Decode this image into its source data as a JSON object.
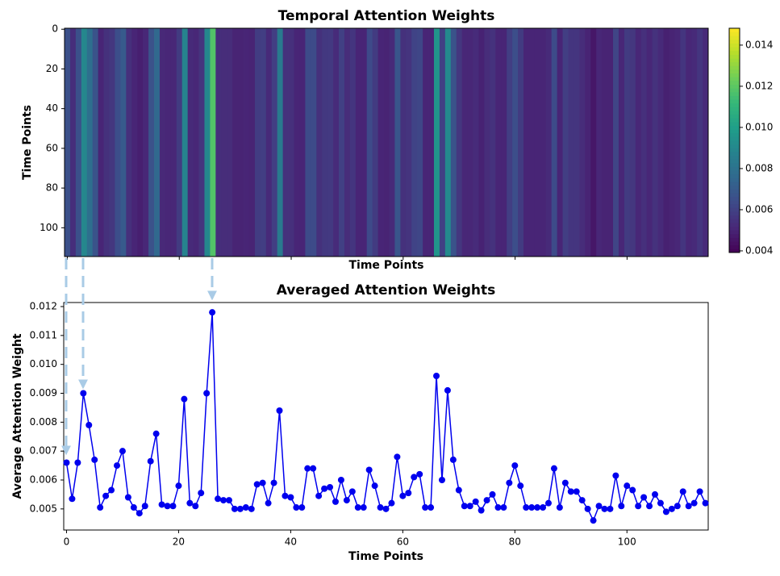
{
  "chart_data": [
    {
      "type": "heatmap",
      "title": "Temporal Attention Weights",
      "x_label": "Time Points",
      "y_label": "Time Points",
      "values": [
        0.0066,
        0.00535,
        0.0066,
        0.009,
        0.0079,
        0.0067,
        0.00505,
        0.00545,
        0.00565,
        0.0065,
        0.007,
        0.0054,
        0.00505,
        0.00485,
        0.0051,
        0.00665,
        0.0076,
        0.00515,
        0.0051,
        0.0051,
        0.0058,
        0.0088,
        0.0052,
        0.0051,
        0.00555,
        0.009,
        0.0118,
        0.00535,
        0.0053,
        0.0053,
        0.005,
        0.005,
        0.00505,
        0.005,
        0.00585,
        0.0059,
        0.0052,
        0.0059,
        0.0084,
        0.00545,
        0.0054,
        0.00505,
        0.00505,
        0.0064,
        0.0064,
        0.00545,
        0.0057,
        0.00575,
        0.00525,
        0.006,
        0.0053,
        0.0056,
        0.00505,
        0.00505,
        0.00635,
        0.0058,
        0.00505,
        0.005,
        0.0052,
        0.0068,
        0.00545,
        0.00555,
        0.0061,
        0.0062,
        0.00505,
        0.00505,
        0.0096,
        0.006,
        0.0091,
        0.0067,
        0.00565,
        0.0051,
        0.0051,
        0.00525,
        0.00495,
        0.0053,
        0.0055,
        0.00505,
        0.00505,
        0.0059,
        0.0065,
        0.0058,
        0.00505,
        0.00505,
        0.00505,
        0.00505,
        0.0052,
        0.0064,
        0.00505,
        0.0059,
        0.0056,
        0.0056,
        0.0053,
        0.005,
        0.0046,
        0.0051,
        0.005,
        0.005,
        0.00615,
        0.0051,
        0.0058,
        0.00565,
        0.0051,
        0.0054,
        0.0051,
        0.0055,
        0.0052,
        0.0049,
        0.005,
        0.0051,
        0.0056,
        0.0051,
        0.0052,
        0.0056,
        0.0052
      ],
      "xlim": [
        -0.5,
        114.5
      ],
      "xticks": [
        0,
        20,
        40,
        60,
        80,
        100
      ],
      "ylim": [
        114.5,
        -0.5
      ],
      "yticks": [
        0,
        20,
        40,
        60,
        80,
        100
      ],
      "colormap": "viridis",
      "clim": [
        0.00392,
        0.01482
      ],
      "cticks": [
        0.004,
        0.006,
        0.008,
        {
          "value": 0.01,
          "label": "0.010"
        },
        0.012,
        0.014
      ]
    },
    {
      "type": "line",
      "title": "Averaged Attention Weights",
      "x_label": "Time Points",
      "y_label": "Average Attention Weight",
      "color": "#0000ee",
      "x": [
        0,
        1,
        2,
        3,
        4,
        5,
        6,
        7,
        8,
        9,
        10,
        11,
        12,
        13,
        14,
        15,
        16,
        17,
        18,
        19,
        20,
        21,
        22,
        23,
        24,
        25,
        26,
        27,
        28,
        29,
        30,
        31,
        32,
        33,
        34,
        35,
        36,
        37,
        38,
        39,
        40,
        41,
        42,
        43,
        44,
        45,
        46,
        47,
        48,
        49,
        50,
        51,
        52,
        53,
        54,
        55,
        56,
        57,
        58,
        59,
        60,
        61,
        62,
        63,
        64,
        65,
        66,
        67,
        68,
        69,
        70,
        71,
        72,
        73,
        74,
        75,
        76,
        77,
        78,
        79,
        80,
        81,
        82,
        83,
        84,
        85,
        86,
        87,
        88,
        89,
        90,
        91,
        92,
        93,
        94,
        95,
        96,
        97,
        98,
        99,
        100,
        101,
        102,
        103,
        104,
        105,
        106,
        107,
        108,
        109,
        110,
        111,
        112,
        113,
        114
      ],
      "values": [
        0.0066,
        0.00535,
        0.0066,
        0.009,
        0.0079,
        0.0067,
        0.00505,
        0.00545,
        0.00565,
        0.0065,
        0.007,
        0.0054,
        0.00505,
        0.00485,
        0.0051,
        0.00665,
        0.0076,
        0.00515,
        0.0051,
        0.0051,
        0.0058,
        0.0088,
        0.0052,
        0.0051,
        0.00555,
        0.009,
        0.0118,
        0.00535,
        0.0053,
        0.0053,
        0.005,
        0.005,
        0.00505,
        0.005,
        0.00585,
        0.0059,
        0.0052,
        0.0059,
        0.0084,
        0.00545,
        0.0054,
        0.00505,
        0.00505,
        0.0064,
        0.0064,
        0.00545,
        0.0057,
        0.00575,
        0.00525,
        0.006,
        0.0053,
        0.0056,
        0.00505,
        0.00505,
        0.00635,
        0.0058,
        0.00505,
        0.005,
        0.0052,
        0.0068,
        0.00545,
        0.00555,
        0.0061,
        0.0062,
        0.00505,
        0.00505,
        0.0096,
        0.006,
        0.0091,
        0.0067,
        0.00565,
        0.0051,
        0.0051,
        0.00525,
        0.00495,
        0.0053,
        0.0055,
        0.00505,
        0.00505,
        0.0059,
        0.0065,
        0.0058,
        0.00505,
        0.00505,
        0.00505,
        0.00505,
        0.0052,
        0.0064,
        0.00505,
        0.0059,
        0.0056,
        0.0056,
        0.0053,
        0.005,
        0.0046,
        0.0051,
        0.005,
        0.005,
        0.00615,
        0.0051,
        0.0058,
        0.00565,
        0.0051,
        0.0054,
        0.0051,
        0.0055,
        0.0052,
        0.0049,
        0.005,
        0.0051,
        0.0056,
        0.0051,
        0.0052,
        0.0056,
        0.0052
      ],
      "xlim": [
        -0.5,
        114.5
      ],
      "xticks": [
        0,
        20,
        40,
        60,
        80,
        100
      ],
      "ylim": [
        0.00427,
        0.01214
      ],
      "yticks": [
        0.005,
        0.006,
        0.007,
        0.008,
        0.009,
        {
          "value": 0.01,
          "label": "0.010"
        },
        0.011,
        0.012
      ]
    }
  ]
}
